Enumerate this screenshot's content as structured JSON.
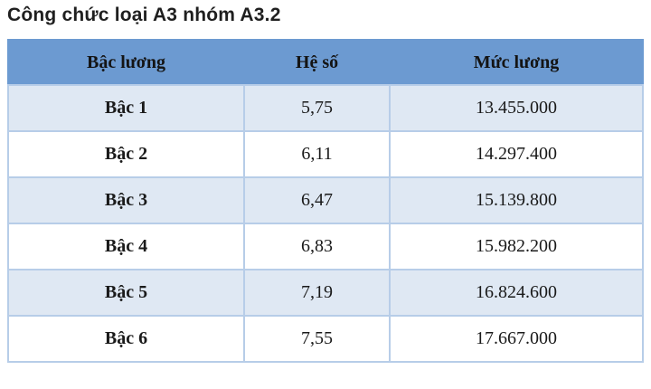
{
  "page": {
    "title": "Công chức loại A3 nhóm A3.2"
  },
  "table": {
    "headers": [
      "Bậc lương",
      "Hệ số",
      "Mức lương"
    ],
    "rows": [
      {
        "level": "Bậc 1",
        "coefficient": "5,75",
        "salary": "13.455.000"
      },
      {
        "level": "Bậc 2",
        "coefficient": "6,11",
        "salary": "14.297.400"
      },
      {
        "level": "Bậc 3",
        "coefficient": "6,47",
        "salary": "15.139.800"
      },
      {
        "level": "Bậc 4",
        "coefficient": "6,83",
        "salary": "15.982.200"
      },
      {
        "level": "Bậc 5",
        "coefficient": "7,19",
        "salary": "16.824.600"
      },
      {
        "level": "Bậc 6",
        "coefficient": "7,55",
        "salary": "17.667.000"
      }
    ]
  },
  "colors": {
    "header_bg": "#6c9ad1",
    "row_stripe_bg": "#dfe8f3",
    "row_plain_bg": "#ffffff",
    "border": "#b7cde8",
    "title_text": "#1f1f1f",
    "table_text": "#1a1a1a"
  }
}
